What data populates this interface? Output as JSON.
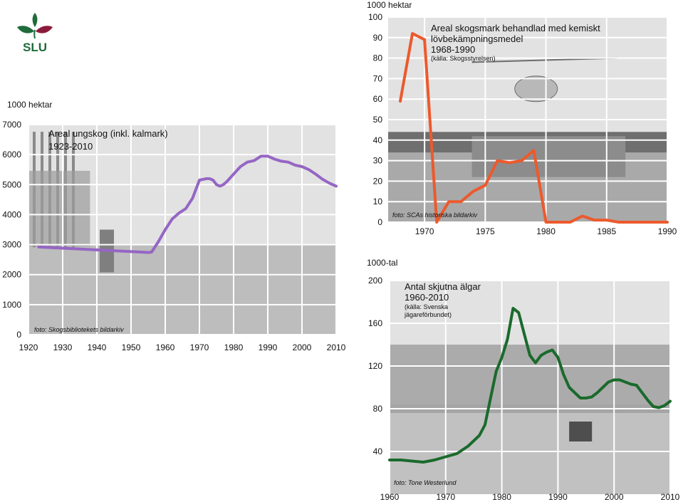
{
  "logo": {
    "text": "SLU",
    "color": "#1f6b3a",
    "accent": "#8b1a3a"
  },
  "chart_data": [
    {
      "id": "areal",
      "type": "line",
      "title_lines": [
        "Areal ungskog (inkl. kalmark)",
        "1923-2010"
      ],
      "source": "",
      "photo_credit": "foto: Skogsbibliotekets bildarkiv",
      "unit_label": "1000 hektar",
      "xlim": [
        1920,
        2010
      ],
      "ylim": [
        0,
        7000
      ],
      "xticks": [
        1920,
        1930,
        1940,
        1950,
        1960,
        1970,
        1980,
        1990,
        2000,
        2010
      ],
      "yticks": [
        0,
        1000,
        2000,
        3000,
        4000,
        5000,
        6000,
        7000
      ],
      "grid": true,
      "color": "#9566c4",
      "series": [
        {
          "x": [
            1923,
            1955,
            1956,
            1958,
            1960,
            1962,
            1964,
            1966,
            1968,
            1970,
            1972,
            1973,
            1974,
            1975,
            1976,
            1977,
            1978,
            1980,
            1982,
            1984,
            1986,
            1988,
            1990,
            1992,
            1994,
            1996,
            1998,
            2000,
            2002,
            2004,
            2006,
            2008,
            2010
          ],
          "y": [
            2920,
            2740,
            2750,
            3100,
            3500,
            3850,
            4050,
            4200,
            4550,
            5150,
            5200,
            5200,
            5150,
            5000,
            4950,
            5000,
            5100,
            5350,
            5600,
            5750,
            5800,
            5950,
            5950,
            5850,
            5780,
            5750,
            5650,
            5600,
            5500,
            5350,
            5180,
            5050,
            4950
          ]
        }
      ]
    },
    {
      "id": "kemisk",
      "type": "line",
      "title_lines": [
        "Areal skogsmark behandlad med kemiskt",
        "lövbekämpningsmedel",
        "1968-1990"
      ],
      "source": "(källa: Skogsstyrelsen)",
      "photo_credit": "foto: SCAs historiska bildarkiv",
      "unit_label": "1000 hektar",
      "xlim": [
        1967,
        1990
      ],
      "ylim": [
        0,
        100
      ],
      "xticks": [
        1970,
        1975,
        1980,
        1985,
        1990
      ],
      "yticks": [
        0,
        10,
        20,
        30,
        40,
        50,
        60,
        70,
        80,
        90,
        100
      ],
      "grid": true,
      "color": "#ec5a2d",
      "series": [
        {
          "x": [
            1968,
            1969,
            1970,
            1971,
            1972,
            1973,
            1974,
            1975,
            1976,
            1977,
            1978,
            1979,
            1980,
            1981,
            1982,
            1983,
            1984,
            1985,
            1986,
            1987,
            1988,
            1989,
            1990
          ],
          "y": [
            59,
            92,
            89,
            0,
            10,
            10,
            15,
            18,
            30,
            29,
            30,
            35,
            0,
            0,
            0,
            3,
            1,
            1,
            0,
            0,
            0,
            0,
            0
          ]
        }
      ]
    },
    {
      "id": "algar",
      "type": "line",
      "title_lines": [
        "Antal skjutna älgar",
        "1960-2010"
      ],
      "source_lines": [
        "(källa: Svenska",
        "jägareförbundet)"
      ],
      "photo_credit": "foto: Tone Westerlund",
      "unit_label": "1000-tal",
      "xlim": [
        1960,
        2010
      ],
      "ylim": [
        0,
        200
      ],
      "xticks": [
        1960,
        1970,
        1980,
        1990,
        2000,
        2010
      ],
      "yticks": [
        40,
        80,
        120,
        160,
        200
      ],
      "grid": true,
      "color": "#1a6a2c",
      "series": [
        {
          "x": [
            1960,
            1962,
            1964,
            1966,
            1968,
            1970,
            1972,
            1974,
            1976,
            1977,
            1978,
            1979,
            1980,
            1981,
            1982,
            1983,
            1984,
            1985,
            1986,
            1987,
            1988,
            1989,
            1990,
            1991,
            1992,
            1993,
            1994,
            1995,
            1996,
            1997,
            1998,
            1999,
            2000,
            2001,
            2002,
            2003,
            2004,
            2005,
            2006,
            2007,
            2008,
            2009,
            2010
          ],
          "y": [
            32,
            32,
            31,
            30,
            32,
            35,
            38,
            45,
            55,
            65,
            90,
            115,
            128,
            145,
            174,
            170,
            150,
            130,
            123,
            130,
            133,
            135,
            128,
            112,
            100,
            95,
            90,
            90,
            91,
            95,
            100,
            105,
            107,
            107,
            105,
            103,
            102,
            95,
            88,
            82,
            81,
            83,
            87
          ]
        }
      ]
    }
  ]
}
